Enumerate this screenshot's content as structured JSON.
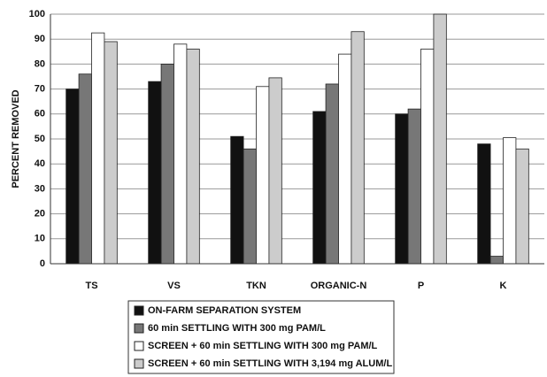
{
  "chart_data": {
    "type": "bar",
    "ylabel": "PERCENT REMOVED",
    "categories": [
      "TS",
      "VS",
      "TKN",
      "ORGANIC-N",
      "P",
      "K"
    ],
    "series": [
      {
        "name": "ON-FARM SEPARATION SYSTEM",
        "color": "#111111",
        "values": [
          70,
          73,
          51,
          61,
          60,
          48
        ]
      },
      {
        "name": "60 min SETTLING WITH 300 mg PAM/L",
        "color": "#777777",
        "values": [
          76,
          80,
          46,
          72,
          62,
          3
        ]
      },
      {
        "name": "SCREEN + 60 min SETTLING WITH 300 mg PAM/L",
        "color": "#ffffff",
        "values": [
          92.5,
          88,
          71,
          84,
          86,
          50.5
        ]
      },
      {
        "name": "SCREEN + 60 min SETTLING WITH 3,194 mg ALUM/L",
        "color": "#cccccc",
        "values": [
          89,
          86,
          74.5,
          93,
          100,
          46
        ]
      }
    ],
    "ylim": [
      0,
      100
    ],
    "yticks": [
      0,
      10,
      20,
      30,
      40,
      50,
      60,
      70,
      80,
      90,
      100
    ],
    "grid": true
  }
}
